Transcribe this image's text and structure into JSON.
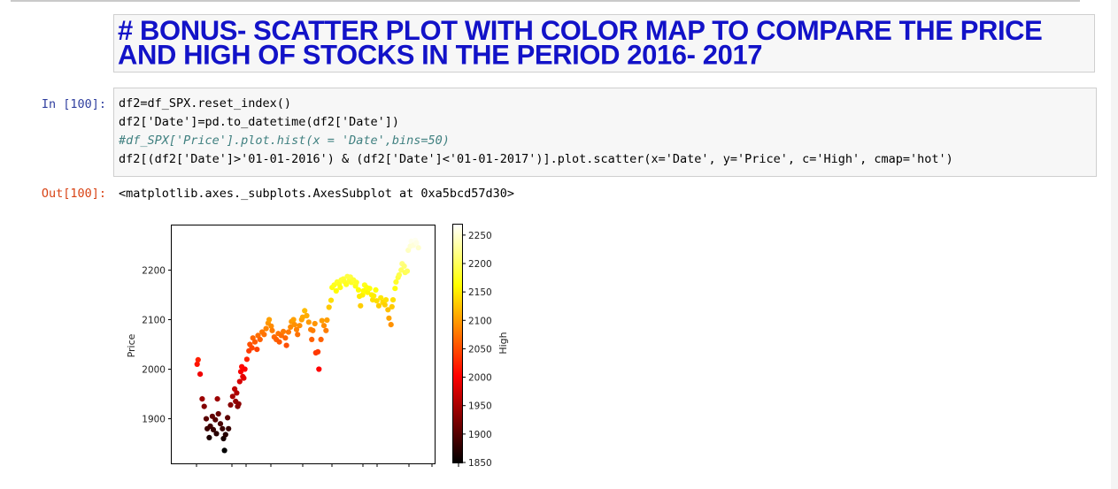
{
  "markdown": {
    "title": "# BONUS- SCATTER PLOT WITH COLOR MAP TO COMPARE THE PRICE AND HIGH OF STOCKS IN THE PERIOD  2016- 2017"
  },
  "input_cell": {
    "prompt": "In [100]:",
    "code_lines": [
      "df2=df_SPX.reset_index()",
      "df2['Date']=pd.to_datetime(df2['Date'])",
      "#df_SPX['Price'].plot.hist(x = 'Date',bins=50)",
      "df2[(df2['Date']>'01-01-2016') & (df2['Date']<'01-01-2017')].plot.scatter(x='Date', y='Price', c='High', cmap='hot')"
    ]
  },
  "output_cell": {
    "prompt": "Out[100]:",
    "text": "<matplotlib.axes._subplots.AxesSubplot at 0xa5bcd57d30>"
  },
  "chart_data": {
    "type": "scatter",
    "xlabel": "",
    "ylabel": "Price",
    "colorbar_label": "High",
    "cmap": "hot",
    "ylim": [
      1810,
      2290
    ],
    "yticks": [
      1900,
      2000,
      2100,
      2200
    ],
    "clim": [
      1850,
      2270
    ],
    "cticks": [
      1850,
      1900,
      1950,
      2000,
      2050,
      2100,
      2150,
      2200,
      2250
    ],
    "xlim": [
      -5,
      254
    ],
    "x_tick_count": 11,
    "points": [
      [
        20,
        2010
      ],
      [
        21,
        2019
      ],
      [
        23,
        1990
      ],
      [
        25,
        1940
      ],
      [
        27,
        1925
      ],
      [
        29,
        1900
      ],
      [
        30,
        1880
      ],
      [
        32,
        1862
      ],
      [
        33,
        1885
      ],
      [
        35,
        1905
      ],
      [
        36,
        1878
      ],
      [
        38,
        1898
      ],
      [
        39,
        1870
      ],
      [
        40,
        1940
      ],
      [
        41,
        1910
      ],
      [
        43,
        1890
      ],
      [
        45,
        1880
      ],
      [
        46,
        1860
      ],
      [
        47,
        1836
      ],
      [
        48,
        1868
      ],
      [
        50,
        1902
      ],
      [
        51,
        1880
      ],
      [
        53,
        1928
      ],
      [
        55,
        1945
      ],
      [
        57,
        1960
      ],
      [
        58,
        1935
      ],
      [
        59,
        1952
      ],
      [
        60,
        1925
      ],
      [
        61,
        1930
      ],
      [
        62,
        1975
      ],
      [
        63,
        1995
      ],
      [
        64,
        2005
      ],
      [
        65,
        1985
      ],
      [
        66,
        1982
      ],
      [
        67,
        2000
      ],
      [
        69,
        2020
      ],
      [
        71,
        2037
      ],
      [
        72,
        2050
      ],
      [
        74,
        2043
      ],
      [
        75,
        2063
      ],
      [
        77,
        2055
      ],
      [
        79,
        2040
      ],
      [
        80,
        2068
      ],
      [
        82,
        2060
      ],
      [
        84,
        2075
      ],
      [
        86,
        2070
      ],
      [
        88,
        2082
      ],
      [
        90,
        2093
      ],
      [
        91,
        2100
      ],
      [
        93,
        2087
      ],
      [
        94,
        2078
      ],
      [
        96,
        2065
      ],
      [
        98,
        2060
      ],
      [
        100,
        2072
      ],
      [
        101,
        2055
      ],
      [
        103,
        2068
      ],
      [
        105,
        2076
      ],
      [
        107,
        2063
      ],
      [
        108,
        2048
      ],
      [
        110,
        2075
      ],
      [
        112,
        2085
      ],
      [
        113,
        2096
      ],
      [
        115,
        2100
      ],
      [
        116,
        2090
      ],
      [
        118,
        2080
      ],
      [
        119,
        2070
      ],
      [
        121,
        2088
      ],
      [
        123,
        2100
      ],
      [
        124,
        2105
      ],
      [
        126,
        2118
      ],
      [
        128,
        2108
      ],
      [
        130,
        2095
      ],
      [
        132,
        2080
      ],
      [
        133,
        2060
      ],
      [
        134,
        2078
      ],
      [
        136,
        2092
      ],
      [
        137,
        2033
      ],
      [
        139,
        2035
      ],
      [
        140,
        2000
      ],
      [
        142,
        2060
      ],
      [
        143,
        2098
      ],
      [
        145,
        2088
      ],
      [
        147,
        2078
      ],
      [
        148,
        2099
      ],
      [
        150,
        2125
      ],
      [
        152,
        2139
      ],
      [
        153,
        2165
      ],
      [
        155,
        2170
      ],
      [
        157,
        2158
      ],
      [
        158,
        2176
      ],
      [
        160,
        2172
      ],
      [
        161,
        2165
      ],
      [
        162,
        2180
      ],
      [
        164,
        2182
      ],
      [
        165,
        2177
      ],
      [
        167,
        2171
      ],
      [
        168,
        2187
      ],
      [
        170,
        2178
      ],
      [
        171,
        2186
      ],
      [
        172,
        2175
      ],
      [
        174,
        2180
      ],
      [
        176,
        2168
      ],
      [
        177,
        2175
      ],
      [
        179,
        2160
      ],
      [
        180,
        2147
      ],
      [
        181,
        2128
      ],
      [
        183,
        2150
      ],
      [
        184,
        2158
      ],
      [
        185,
        2170
      ],
      [
        187,
        2165
      ],
      [
        188,
        2155
      ],
      [
        190,
        2163
      ],
      [
        192,
        2150
      ],
      [
        193,
        2140
      ],
      [
        194,
        2148
      ],
      [
        196,
        2160
      ],
      [
        197,
        2138
      ],
      [
        199,
        2128
      ],
      [
        201,
        2144
      ],
      [
        203,
        2135
      ],
      [
        205,
        2130
      ],
      [
        206,
        2140
      ],
      [
        208,
        2120
      ],
      [
        209,
        2103
      ],
      [
        211,
        2090
      ],
      [
        212,
        2126
      ],
      [
        213,
        2140
      ],
      [
        215,
        2163
      ],
      [
        216,
        2176
      ],
      [
        218,
        2185
      ],
      [
        219,
        2190
      ],
      [
        221,
        2200
      ],
      [
        222,
        2213
      ],
      [
        224,
        2208
      ],
      [
        225,
        2195
      ],
      [
        227,
        2198
      ],
      [
        228,
        2240
      ],
      [
        230,
        2248
      ],
      [
        231,
        2258
      ],
      [
        233,
        2250
      ],
      [
        235,
        2260
      ],
      [
        236,
        2255
      ],
      [
        238,
        2245
      ]
    ]
  }
}
